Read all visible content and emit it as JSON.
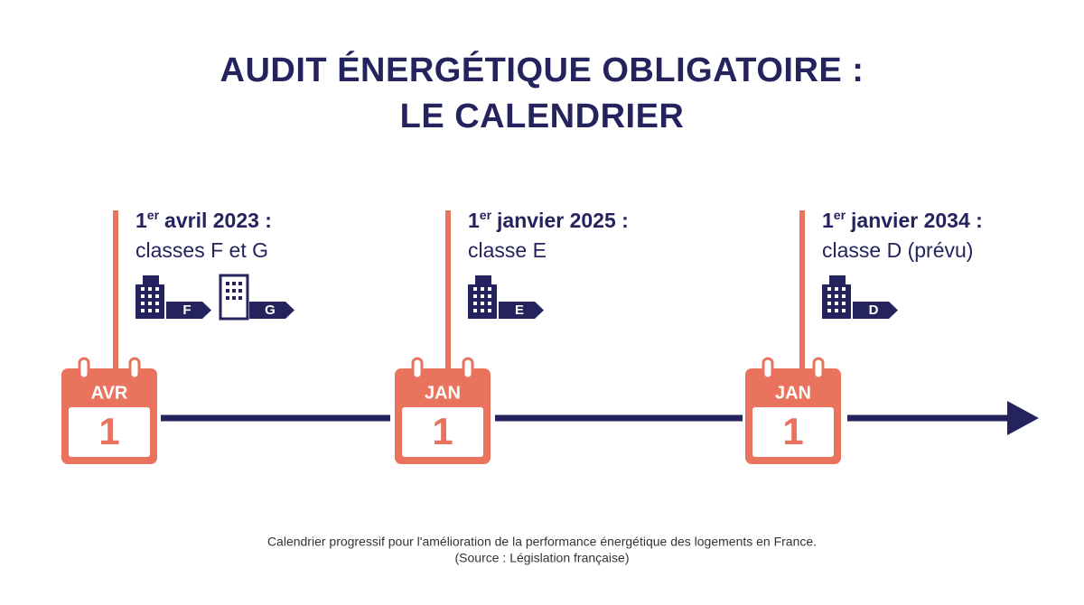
{
  "header": {
    "title_lines": [
      "AUDIT ÉNERGÉTIQUE OBLIGATOIRE :",
      "LE CALENDRIER"
    ]
  },
  "events": [
    {
      "calendar": {
        "month": "AVR",
        "day": "1"
      },
      "date": {
        "day": "1",
        "suffix": "er",
        "rest": "avril 2023 :"
      },
      "description": "classes F et G",
      "classes": [
        "F",
        "G"
      ]
    },
    {
      "calendar": {
        "month": "JAN",
        "day": "1"
      },
      "date": {
        "day": "1",
        "suffix": "er",
        "rest": "janvier 2025 :"
      },
      "description": "classe E",
      "classes": [
        "E"
      ]
    },
    {
      "calendar": {
        "month": "JAN",
        "day": "1"
      },
      "date": {
        "day": "1",
        "suffix": "er",
        "rest": "janvier 2034 :"
      },
      "description": "classe D (prévu)",
      "classes": [
        "D"
      ]
    }
  ],
  "caption": {
    "lines": [
      "Calendrier progressif pour l'amélioration de la performance énergétique des logements en France.",
      "(Source : Législation française)"
    ]
  }
}
